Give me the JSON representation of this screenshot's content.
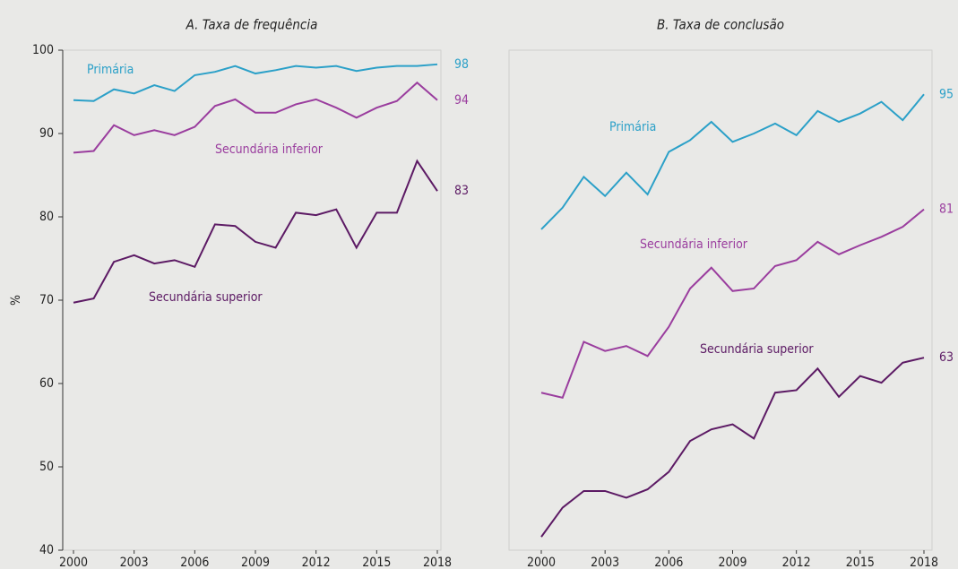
{
  "chart_data": [
    {
      "type": "line",
      "title": "A. Taxa de frequência",
      "ylabel": "%",
      "x": [
        2000,
        2001,
        2002,
        2003,
        2004,
        2005,
        2006,
        2007,
        2008,
        2009,
        2010,
        2011,
        2012,
        2013,
        2014,
        2015,
        2016,
        2017,
        2018
      ],
      "xlim": [
        2000,
        2018
      ],
      "xticks": [
        2000,
        2003,
        2006,
        2009,
        2012,
        2015,
        2018
      ],
      "ylim": [
        40,
        100
      ],
      "yticks": [
        40,
        50,
        60,
        70,
        80,
        90,
        100
      ],
      "series": [
        {
          "name": "Primária",
          "color": "#2ba0c8",
          "end_label": "98",
          "values": [
            94.0,
            93.9,
            95.3,
            94.8,
            95.8,
            95.1,
            97.0,
            97.4,
            98.1,
            97.2,
            97.6,
            98.1,
            97.9,
            98.1,
            97.5,
            97.9,
            98.1,
            98.1,
            98.3
          ]
        },
        {
          "name": "Secundária inferior",
          "color": "#9a3d9e",
          "end_label": "94",
          "values": [
            87.7,
            87.9,
            91.0,
            89.8,
            90.4,
            89.8,
            90.8,
            93.3,
            94.1,
            92.5,
            92.5,
            93.5,
            94.1,
            93.1,
            91.9,
            93.1,
            93.9,
            96.1,
            94.0
          ]
        },
        {
          "name": "Secundária superior",
          "color": "#5c1a64",
          "end_label": "83",
          "values": [
            69.7,
            70.2,
            74.6,
            75.4,
            74.4,
            74.8,
            74.0,
            79.1,
            78.9,
            77.0,
            76.3,
            80.5,
            80.2,
            80.9,
            76.3,
            80.5,
            80.5,
            86.7,
            83.1
          ]
        }
      ]
    },
    {
      "type": "line",
      "title": "B. Taxa de conclusão",
      "x": [
        2000,
        2001,
        2002,
        2003,
        2004,
        2005,
        2006,
        2007,
        2008,
        2009,
        2010,
        2011,
        2012,
        2013,
        2014,
        2015,
        2016,
        2017,
        2018
      ],
      "xlim": [
        2000,
        2018
      ],
      "xticks": [
        2000,
        2003,
        2006,
        2009,
        2012,
        2015,
        2018
      ],
      "ylim": [
        40,
        100
      ],
      "series": [
        {
          "name": "Primária",
          "color": "#2ba0c8",
          "end_label": "95",
          "values": [
            78.5,
            81.1,
            84.8,
            82.5,
            85.3,
            82.7,
            87.8,
            89.2,
            91.4,
            89.0,
            90.0,
            91.2,
            89.8,
            92.7,
            91.4,
            92.4,
            93.8,
            91.6,
            94.7
          ]
        },
        {
          "name": "Secundária inferior",
          "color": "#9a3d9e",
          "end_label": "81",
          "values": [
            58.9,
            58.3,
            65.0,
            63.9,
            64.5,
            63.3,
            66.8,
            71.4,
            73.9,
            71.1,
            71.4,
            74.1,
            74.8,
            77.0,
            75.5,
            76.6,
            77.6,
            78.8,
            80.9
          ]
        },
        {
          "name": "Secundária superior",
          "color": "#5c1a64",
          "end_label": "63",
          "values": [
            41.6,
            45.1,
            47.1,
            47.1,
            46.3,
            47.3,
            49.4,
            53.1,
            54.5,
            55.1,
            53.4,
            58.9,
            59.2,
            61.8,
            58.4,
            60.9,
            60.1,
            62.5,
            63.1
          ]
        }
      ]
    }
  ]
}
